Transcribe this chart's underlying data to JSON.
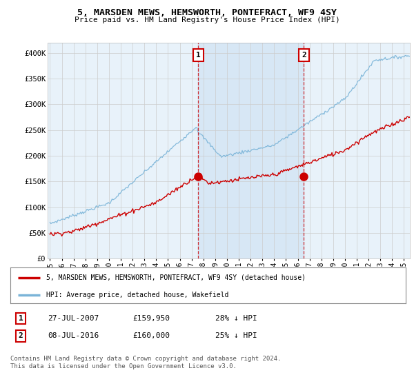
{
  "title": "5, MARSDEN MEWS, HEMSWORTH, PONTEFRACT, WF9 4SY",
  "subtitle": "Price paid vs. HM Land Registry's House Price Index (HPI)",
  "ylabel_ticks": [
    "£0",
    "£50K",
    "£100K",
    "£150K",
    "£200K",
    "£250K",
    "£300K",
    "£350K",
    "£400K"
  ],
  "ylim": [
    0,
    420000
  ],
  "xlim_start": 1994.8,
  "xlim_end": 2025.5,
  "plot_bg_color": "#ddeeff",
  "between_shade_color": "#cce0f0",
  "hpi_color": "#7ab4d8",
  "price_color": "#cc0000",
  "sale1_x": 2007.57,
  "sale1_y": 159950,
  "sale2_x": 2016.52,
  "sale2_y": 160000,
  "legend_house_label": "5, MARSDEN MEWS, HEMSWORTH, PONTEFRACT, WF9 4SY (detached house)",
  "legend_hpi_label": "HPI: Average price, detached house, Wakefield",
  "table_row1": [
    "1",
    "27-JUL-2007",
    "£159,950",
    "28% ↓ HPI"
  ],
  "table_row2": [
    "2",
    "08-JUL-2016",
    "£160,000",
    "25% ↓ HPI"
  ],
  "footnote": "Contains HM Land Registry data © Crown copyright and database right 2024.\nThis data is licensed under the Open Government Licence v3.0.",
  "xticks": [
    1995,
    1996,
    1997,
    1998,
    1999,
    2000,
    2001,
    2002,
    2003,
    2004,
    2005,
    2006,
    2007,
    2008,
    2009,
    2010,
    2011,
    2012,
    2013,
    2014,
    2015,
    2016,
    2017,
    2018,
    2019,
    2020,
    2021,
    2022,
    2023,
    2024,
    2025
  ]
}
